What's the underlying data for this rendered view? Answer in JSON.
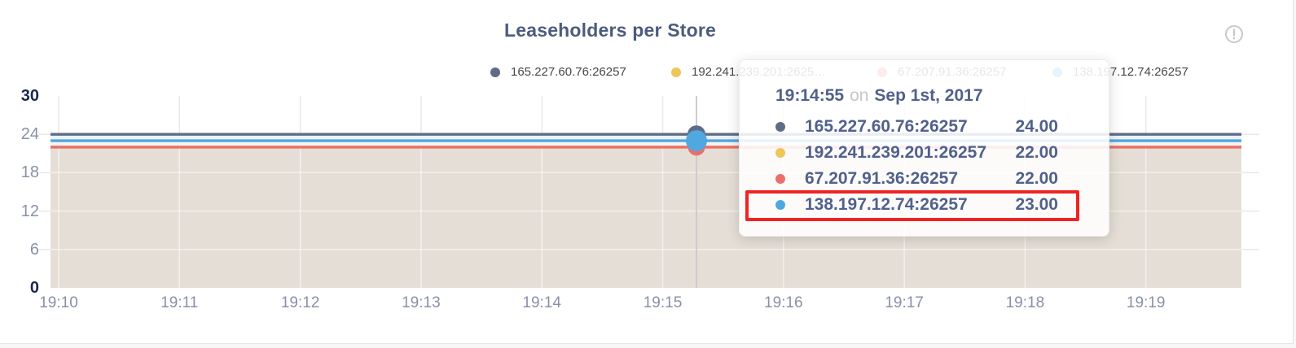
{
  "card": {
    "title": "Leaseholders per Store"
  },
  "icons": {
    "top_right": "info-exclamation-circle"
  },
  "legend": {
    "items": [
      {
        "label": "165.227.60.76:26257",
        "color": "#5f6c87"
      },
      {
        "label": "192.241.239.201:2625…",
        "color": "#eec65a"
      },
      {
        "label": "67.207.91.36:26257",
        "color": "#ea6f6a"
      },
      {
        "label": "138.197.12.74:26257",
        "color": "#4fa8e0"
      }
    ]
  },
  "tooltip": {
    "time": "19:14:55",
    "separator": "on",
    "date": "Sep 1st, 2017",
    "rows": [
      {
        "label": "165.227.60.76:26257",
        "value": "24.00",
        "color": "#5f6c87",
        "highlighted": false
      },
      {
        "label": "192.241.239.201:26257",
        "value": "22.00",
        "color": "#eec65a",
        "highlighted": false
      },
      {
        "label": "67.207.91.36:26257",
        "value": "22.00",
        "color": "#ea6f6a",
        "highlighted": false
      },
      {
        "label": "138.197.12.74:26257",
        "value": "23.00",
        "color": "#4fa8e0",
        "highlighted": true
      }
    ],
    "highlight_color": "#ee2424"
  },
  "axes": {
    "y_ticks": [
      "30",
      "24",
      "18",
      "12",
      "6",
      "0"
    ],
    "x_ticks": [
      "19:10",
      "19:11",
      "19:12",
      "19:13",
      "19:14",
      "19:15",
      "19:16",
      "19:17",
      "19:18",
      "19:19"
    ]
  },
  "chart_data": {
    "type": "area",
    "title": "Leaseholders per Store",
    "xlabel": "",
    "ylabel": "",
    "x_ticks": [
      "19:10",
      "19:11",
      "19:12",
      "19:13",
      "19:14",
      "19:15",
      "19:16",
      "19:17",
      "19:18",
      "19:19"
    ],
    "ylim": [
      0,
      30
    ],
    "y_ticks": [
      0,
      6,
      12,
      18,
      24,
      30
    ],
    "grid": true,
    "legend_position": "top",
    "fill_color": "#e5ded6",
    "series": [
      {
        "name": "165.227.60.76:26257",
        "color": "#5f6c87",
        "values": [
          24,
          24,
          24,
          24,
          24,
          24,
          24,
          24,
          24,
          24
        ]
      },
      {
        "name": "192.241.239.201:26257",
        "color": "#eec65a",
        "values": [
          22,
          22,
          22,
          22,
          22,
          22,
          22,
          22,
          22,
          22
        ]
      },
      {
        "name": "67.207.91.36:26257",
        "color": "#ea6f6a",
        "values": [
          22,
          22,
          22,
          22,
          22,
          22,
          22,
          22,
          22,
          22
        ]
      },
      {
        "name": "138.197.12.74:26257",
        "color": "#4fa8e0",
        "values": [
          23,
          23,
          23,
          23,
          23,
          23,
          23,
          23,
          23,
          23
        ]
      }
    ],
    "hover_point": {
      "time": "19:14:55",
      "date": "Sep 1st, 2017",
      "values": {
        "165.227.60.76:26257": 24.0,
        "192.241.239.201:26257": 22.0,
        "67.207.91.36:26257": 22.0,
        "138.197.12.74:26257": 23.0
      }
    }
  }
}
